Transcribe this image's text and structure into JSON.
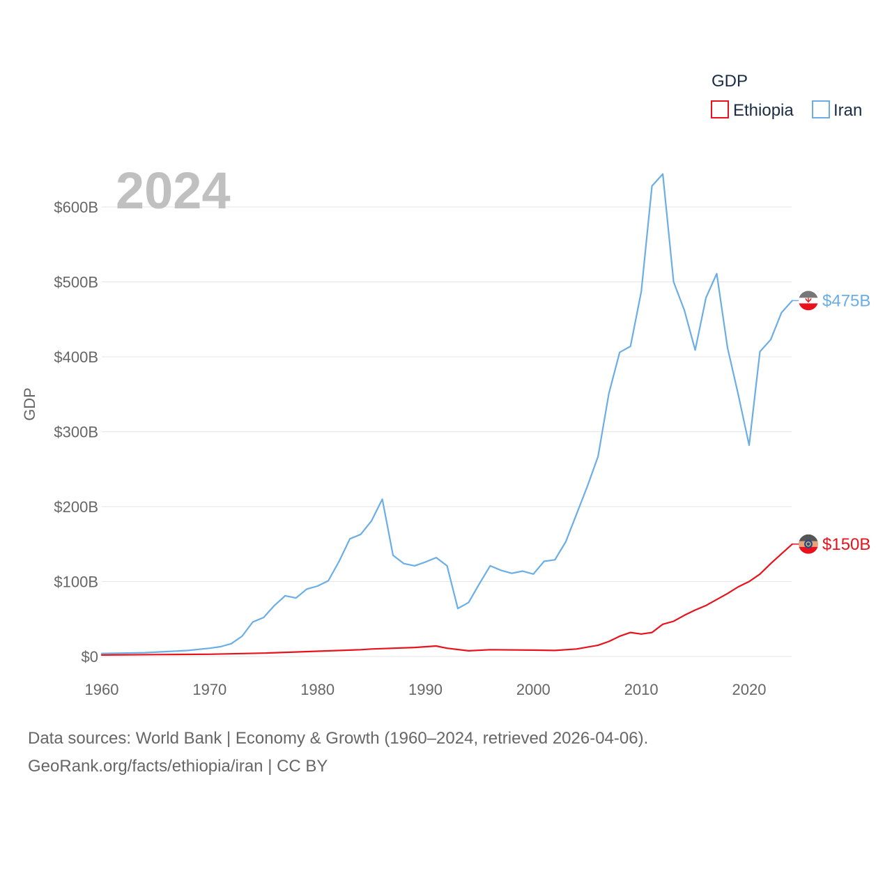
{
  "chart_data": {
    "type": "line",
    "title": "GDP",
    "watermark_year": "2024",
    "ylabel": "GDP",
    "xlabel": "",
    "xlim": [
      1960,
      2024
    ],
    "ylim": [
      0,
      650
    ],
    "x_ticks": [
      1960,
      1970,
      1980,
      1990,
      2000,
      2010,
      2020
    ],
    "y_ticks": [
      {
        "value": 0,
        "label": "$0"
      },
      {
        "value": 100,
        "label": "$100B"
      },
      {
        "value": 200,
        "label": "$200B"
      },
      {
        "value": 300,
        "label": "$300B"
      },
      {
        "value": 400,
        "label": "$400B"
      },
      {
        "value": 500,
        "label": "$500B"
      },
      {
        "value": 600,
        "label": "$600B"
      }
    ],
    "legend": {
      "title": "GDP",
      "placement": "top-right"
    },
    "units": "billions USD",
    "series": [
      {
        "name": "Ethiopia",
        "color": "#e8121c",
        "end_label": "$150B",
        "marker_icon": "ethiopia-flag-icon",
        "points": [
          [
            1960,
            2
          ],
          [
            1965,
            2.5
          ],
          [
            1970,
            3
          ],
          [
            1975,
            4.5
          ],
          [
            1980,
            7
          ],
          [
            1984,
            9
          ],
          [
            1985,
            10
          ],
          [
            1989,
            12
          ],
          [
            1991,
            14
          ],
          [
            1992,
            11
          ],
          [
            1994,
            7.5
          ],
          [
            1996,
            9
          ],
          [
            2000,
            8.5
          ],
          [
            2002,
            8
          ],
          [
            2004,
            10
          ],
          [
            2006,
            15
          ],
          [
            2007,
            20
          ],
          [
            2008,
            27
          ],
          [
            2009,
            32
          ],
          [
            2010,
            30
          ],
          [
            2011,
            32
          ],
          [
            2012,
            43
          ],
          [
            2013,
            47
          ],
          [
            2014,
            55
          ],
          [
            2015,
            62
          ],
          [
            2016,
            68
          ],
          [
            2017,
            76
          ],
          [
            2018,
            84
          ],
          [
            2019,
            93
          ],
          [
            2020,
            100
          ],
          [
            2021,
            110
          ],
          [
            2022,
            124
          ],
          [
            2023,
            137
          ],
          [
            2024,
            150
          ]
        ]
      },
      {
        "name": "Iran",
        "color": "#6aaee5",
        "end_label": "$475B",
        "marker_icon": "iran-flag-icon",
        "points": [
          [
            1960,
            4
          ],
          [
            1962,
            4.5
          ],
          [
            1964,
            5
          ],
          [
            1966,
            6.5
          ],
          [
            1968,
            8
          ],
          [
            1970,
            11
          ],
          [
            1971,
            13
          ],
          [
            1972,
            17
          ],
          [
            1973,
            27
          ],
          [
            1974,
            46
          ],
          [
            1975,
            52
          ],
          [
            1976,
            68
          ],
          [
            1977,
            81
          ],
          [
            1978,
            78
          ],
          [
            1979,
            90
          ],
          [
            1980,
            94
          ],
          [
            1981,
            101
          ],
          [
            1982,
            127
          ],
          [
            1983,
            157
          ],
          [
            1984,
            163
          ],
          [
            1985,
            181
          ],
          [
            1986,
            210
          ],
          [
            1987,
            135
          ],
          [
            1988,
            124
          ],
          [
            1989,
            121
          ],
          [
            1990,
            126
          ],
          [
            1991,
            132
          ],
          [
            1992,
            121
          ],
          [
            1993,
            64
          ],
          [
            1994,
            72
          ],
          [
            1995,
            97
          ],
          [
            1996,
            121
          ],
          [
            1997,
            115
          ],
          [
            1998,
            111
          ],
          [
            1999,
            114
          ],
          [
            2000,
            110
          ],
          [
            2001,
            127
          ],
          [
            2002,
            129
          ],
          [
            2003,
            153
          ],
          [
            2004,
            190
          ],
          [
            2005,
            227
          ],
          [
            2006,
            267
          ],
          [
            2007,
            351
          ],
          [
            2008,
            406
          ],
          [
            2009,
            414
          ],
          [
            2010,
            487
          ],
          [
            2011,
            628
          ],
          [
            2012,
            644
          ],
          [
            2013,
            500
          ],
          [
            2014,
            462
          ],
          [
            2015,
            409
          ],
          [
            2016,
            479
          ],
          [
            2017,
            511
          ],
          [
            2018,
            412
          ],
          [
            2019,
            349
          ],
          [
            2020,
            282
          ],
          [
            2021,
            407
          ],
          [
            2022,
            423
          ],
          [
            2023,
            459
          ],
          [
            2024,
            475
          ]
        ]
      }
    ]
  },
  "footer": {
    "line1": "Data sources: World Bank | Economy & Growth (1960–2024, retrieved 2026-04-06).",
    "line2": "GeoRank.org/facts/ethiopia/iran | CC BY"
  }
}
